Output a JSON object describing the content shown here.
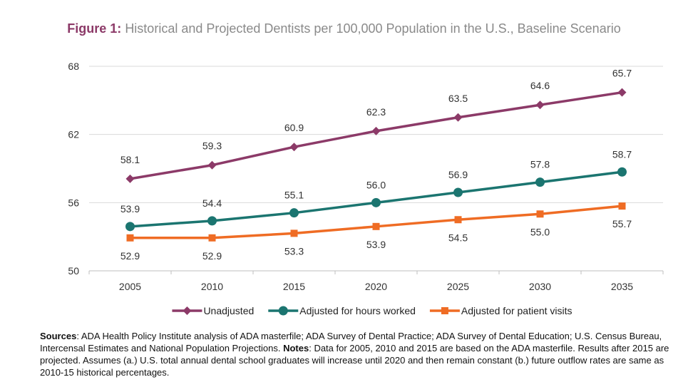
{
  "title": {
    "lead": "Figure 1:",
    "text": "Historical and Projected Dentists per 100,000 Population in the U.S., Baseline Scenario"
  },
  "notes": {
    "sources_label": "Sources",
    "sources_text": ": ADA Health Policy Institute analysis of ADA masterfile; ADA Survey of Dental Practice; ADA Survey of Dental Education; U.S. Census Bureau, Intercensal Estimates and National Population Projections.",
    "notes_label": "Notes",
    "notes_text": ": Data for 2005, 2010 and 2015 are based on the ADA masterfile. Results after 2015 are projected. Assumes (a.) U.S. total annual dental school graduates will increase until 2020 and then remain constant (b.) future outflow rates are same as 2010-15 historical percentages."
  },
  "chart_data": {
    "type": "line",
    "title": "Figure 1: Historical and Projected Dentists per 100,000 Population in the U.S., Baseline Scenario",
    "xlabel": "",
    "ylabel": "",
    "categories": [
      "2005",
      "2010",
      "2015",
      "2020",
      "2025",
      "2030",
      "2035"
    ],
    "ylim": [
      50,
      68
    ],
    "yticks": [
      "50",
      "56",
      "62",
      "68"
    ],
    "grid": true,
    "legend_position": "bottom",
    "series": [
      {
        "name": "Unadjusted",
        "color": "#8c3a68",
        "marker": "diamond",
        "values": [
          58.1,
          59.3,
          60.9,
          62.3,
          63.5,
          64.6,
          65.7
        ],
        "labels": [
          "58.1",
          "59.3",
          "60.9",
          "62.3",
          "63.5",
          "64.6",
          "65.7"
        ]
      },
      {
        "name": "Adjusted for hours worked",
        "color": "#1b7570",
        "marker": "circle",
        "values": [
          53.9,
          54.4,
          55.1,
          56.0,
          56.9,
          57.8,
          58.7
        ],
        "labels": [
          "53.9",
          "54.4",
          "55.1",
          "56.0",
          "56.9",
          "57.8",
          "58.7"
        ]
      },
      {
        "name": "Adjusted for patient visits",
        "color": "#ef6c24",
        "marker": "square",
        "values": [
          52.9,
          52.9,
          53.3,
          53.9,
          54.5,
          55.0,
          55.7
        ],
        "labels": [
          "52.9",
          "52.9",
          "53.3",
          "53.9",
          "54.5",
          "55.0",
          "55.7"
        ]
      }
    ]
  }
}
